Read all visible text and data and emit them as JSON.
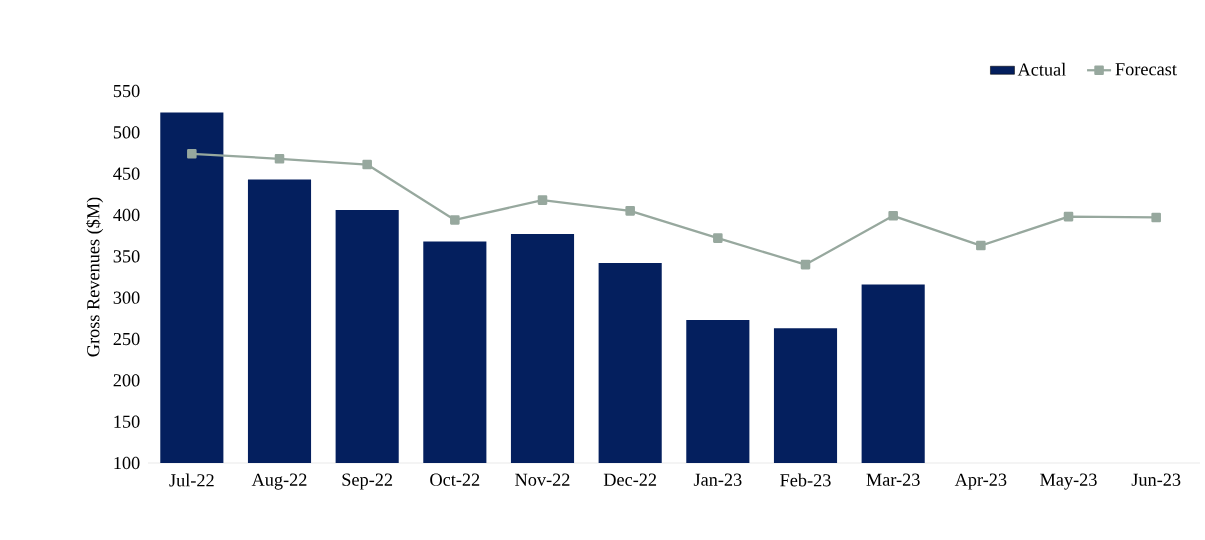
{
  "chart_data": {
    "type": "bar",
    "ylabel": "Gross Revenues ($M)",
    "categories": [
      "Jul-22",
      "Aug-22",
      "Sep-22",
      "Oct-22",
      "Nov-22",
      "Dec-22",
      "Jan-23",
      "Feb-23",
      "Mar-23",
      "Apr-23",
      "May-23",
      "Jun-23"
    ],
    "series": [
      {
        "name": "Actual",
        "color": "#041f5e",
        "values": [
          524,
          443,
          406,
          368,
          377,
          342,
          273,
          263,
          316,
          null,
          null,
          null
        ]
      },
      {
        "name": "Forecast",
        "type": "line",
        "color": "#97a89e",
        "marker": "square",
        "values": [
          474,
          468,
          461,
          394,
          418,
          405,
          372,
          340,
          399,
          363,
          398,
          397
        ]
      }
    ],
    "ylim": [
      100,
      550
    ],
    "yticks": [
      100,
      150,
      200,
      250,
      300,
      350,
      400,
      450,
      500,
      550
    ],
    "grid": false,
    "legend": "top right"
  }
}
